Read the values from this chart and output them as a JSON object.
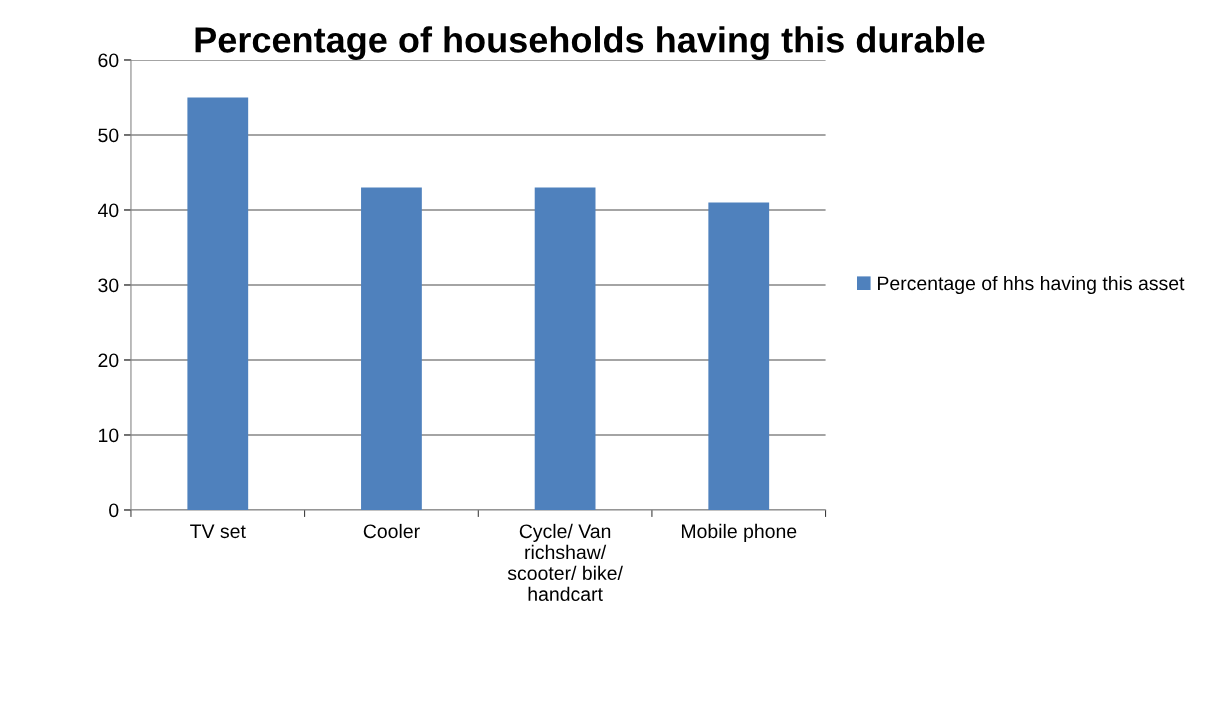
{
  "chart_data": {
    "type": "bar",
    "title": "Percentage of households having this durable",
    "categories": [
      "TV set",
      "Cooler",
      "Cycle/ Van\nrichshaw/\nscooter/ bike/\nhandcart",
      "Mobile phone"
    ],
    "series": [
      {
        "name": "Percentage of hhs having this asset",
        "color": "#4f81bd",
        "values": [
          55,
          43,
          43,
          41
        ]
      }
    ],
    "ylim": [
      0,
      60
    ],
    "yticks": [
      0,
      10,
      20,
      30,
      40,
      50,
      60
    ],
    "grid": "y",
    "legend": "right"
  }
}
